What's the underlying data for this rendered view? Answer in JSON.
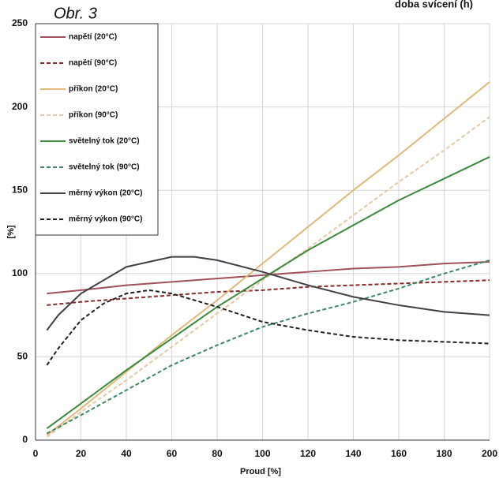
{
  "chart_data": {
    "type": "line",
    "title": "Obr. 3",
    "annotation": "doba svícení (h)",
    "xlabel": "Proud [%]",
    "ylabel": "[%]",
    "xlim": [
      0,
      200
    ],
    "xticks": [
      0,
      20,
      40,
      60,
      80,
      100,
      120,
      140,
      160,
      180,
      200
    ],
    "ylim": [
      0,
      250
    ],
    "yticks": [
      0,
      50,
      100,
      150,
      200,
      250
    ],
    "grid": true,
    "legend": "upper left",
    "series": [
      {
        "name": "napětí (20°C)",
        "color": "#a0505a",
        "dashed": false,
        "x": [
          5,
          20,
          40,
          60,
          80,
          100,
          120,
          140,
          160,
          180,
          200
        ],
        "values": [
          88,
          90,
          93,
          95,
          97,
          99,
          101,
          103,
          104,
          106,
          107
        ]
      },
      {
        "name": "napětí (90°C)",
        "color": "#8b2a2a",
        "dashed": true,
        "x": [
          5,
          20,
          40,
          60,
          80,
          100,
          120,
          140,
          160,
          180,
          200
        ],
        "values": [
          81,
          83,
          85,
          87,
          89,
          90,
          92,
          93,
          94,
          95,
          96
        ]
      },
      {
        "name": "příkon (20°C)",
        "color": "#e0b878",
        "dashed": false,
        "x": [
          5,
          20,
          40,
          60,
          80,
          100,
          120,
          140,
          160,
          180,
          200
        ],
        "values": [
          3,
          19,
          41,
          63,
          84,
          106,
          128,
          150,
          171,
          193,
          215
        ]
      },
      {
        "name": "příkon (90°C)",
        "color": "#e6c8a0",
        "dashed": true,
        "x": [
          5,
          20,
          40,
          60,
          80,
          100,
          120,
          140,
          160,
          180,
          200
        ],
        "values": [
          2,
          17,
          36,
          56,
          76,
          96,
          115,
          135,
          155,
          174,
          194
        ]
      },
      {
        "name": "světelný tok (20°C)",
        "color": "#3a8a3a",
        "dashed": false,
        "x": [
          5,
          20,
          40,
          60,
          80,
          100,
          120,
          140,
          160,
          180,
          200
        ],
        "values": [
          7,
          22,
          42,
          61,
          80,
          97,
          114,
          129,
          144,
          157,
          170
        ]
      },
      {
        "name": "světelný tok (90°C)",
        "color": "#3a8a60",
        "dashed": true,
        "x": [
          5,
          20,
          40,
          60,
          80,
          100,
          120,
          140,
          160,
          180,
          200
        ],
        "values": [
          4,
          15,
          30,
          45,
          57,
          68,
          76,
          83,
          91,
          100,
          108
        ]
      },
      {
        "name": "měrný výkon (20°C)",
        "color": "#404048",
        "dashed": false,
        "x": [
          5,
          10,
          20,
          40,
          60,
          70,
          80,
          100,
          120,
          140,
          160,
          180,
          200
        ],
        "values": [
          66,
          75,
          88,
          104,
          110,
          110,
          108,
          101,
          93,
          86,
          81,
          77,
          75
        ]
      },
      {
        "name": "měrný výkon (90°C)",
        "color": "#202020",
        "dashed": true,
        "x": [
          5,
          10,
          20,
          30,
          40,
          50,
          60,
          80,
          100,
          120,
          140,
          160,
          180,
          200
        ],
        "values": [
          45,
          55,
          72,
          82,
          88,
          90,
          88,
          80,
          71,
          66,
          62,
          60,
          59,
          58
        ]
      }
    ]
  }
}
